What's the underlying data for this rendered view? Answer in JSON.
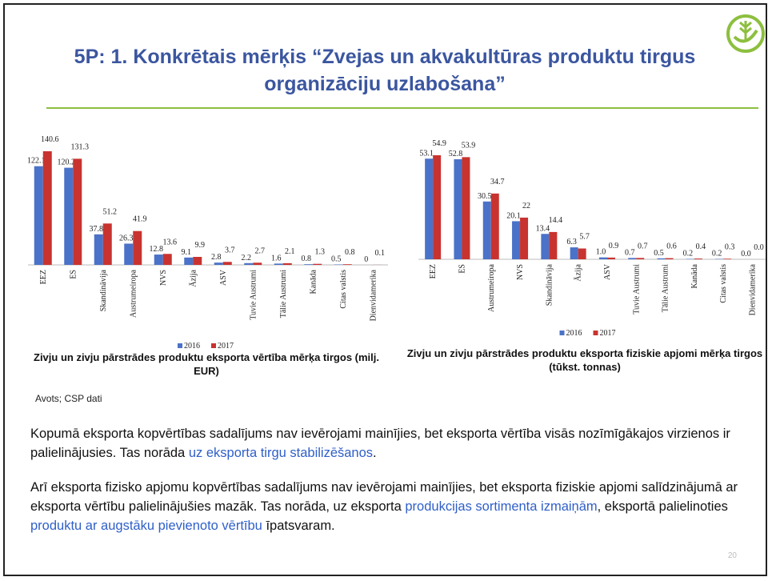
{
  "title": "5P: 1. Konkrētais mērķis “Zvejas un akvakultūras produktu tirgus organizāciju uzlabošana”",
  "chart_data": [
    {
      "type": "bar",
      "title": "Zivju un zivju pārstrādes produktu eksporta vērtība mērķa tirgos (milj. EUR)",
      "categories": [
        "EEZ",
        "ES",
        "Skandināvija",
        "Austrumeiropa",
        "NVS",
        "Āzija",
        "ASV",
        "Tuvie Austrumi",
        "Tālie Austrumi",
        "Kanāda",
        "Citas valstis",
        "Dienvidamerika"
      ],
      "series": [
        {
          "name": "2016",
          "color": "#4a72c8",
          "values": [
            122.1,
            120.2,
            37.8,
            26.3,
            12.8,
            9.1,
            2.8,
            2.2,
            1.6,
            0.8,
            0.5,
            0
          ]
        },
        {
          "name": "2017",
          "color": "#c8332f",
          "values": [
            140.6,
            131.3,
            51.2,
            41.9,
            13.6,
            9.9,
            3.7,
            2.7,
            2.1,
            1.3,
            0.8,
            0.1
          ]
        }
      ]
    },
    {
      "type": "bar",
      "title": "Zivju un zivju pārstrādes produktu eksporta fiziskie apjomi mērķa tirgos (tūkst. tonnas)",
      "categories": [
        "EEZ",
        "ES",
        "Austrumeiropa",
        "NVS",
        "Skandināvija",
        "Āzija",
        "ASV",
        "Tuvie Austrumi",
        "Tālie Austrumi",
        "Kanāda",
        "Citas valstis",
        "Dienvidamerika"
      ],
      "series": [
        {
          "name": "2016",
          "color": "#4a72c8",
          "values": [
            53.1,
            52.8,
            30.5,
            20.1,
            13.4,
            6.3,
            1.0,
            0.7,
            0.5,
            0.2,
            0.2,
            0.0
          ],
          "value_labels": [
            "53.1",
            "52.8",
            "30.5",
            "20.1",
            "13.4",
            "6.3",
            "1.0",
            "0.7",
            "0.5",
            "0.2",
            "0.2",
            "0.0"
          ]
        },
        {
          "name": "2017",
          "color": "#c8332f",
          "values": [
            54.9,
            53.9,
            34.7,
            22,
            14.4,
            5.7,
            0.9,
            0.7,
            0.6,
            0.4,
            0.3,
            0.0
          ],
          "value_labels": [
            "54.9",
            "53.9",
            "34.7",
            "22",
            "14.4",
            "5.7",
            "0.9",
            "0.7",
            "0.6",
            "0.4",
            "0.3",
            "0.0"
          ]
        }
      ]
    }
  ],
  "source": "Avots; CSP dati",
  "paragraphs": [
    [
      {
        "text": "Kopumā eksporta kopvērtības sadalījums nav ievērojami mainījies, bet eksporta vērtība visās nozīmīgākajos virzienos ir palielinājusies. Tas norāda "
      },
      {
        "text": "uz eksporta tirgu stabilizēšanos",
        "color": "#2f5fc8"
      },
      {
        "text": "."
      }
    ],
    [
      {
        "text": "Arī eksporta fizisko apjomu kopvērtības sadalījums nav ievērojami mainījies, bet eksporta fiziskie apjomi salīdzinājumā ar eksporta vērtību palielinājušies mazāk. Tas norāda, uz eksporta "
      },
      {
        "text": "produkcijas sortimenta izmaiņām",
        "color": "#2f5fc8"
      },
      {
        "text": ", eksportā palielinoties "
      },
      {
        "text": "produktu ar augstāku pievienoto vērtību",
        "color": "#2f5fc8"
      },
      {
        "text": " īpatsvaram."
      }
    ]
  ],
  "page_number": 20
}
